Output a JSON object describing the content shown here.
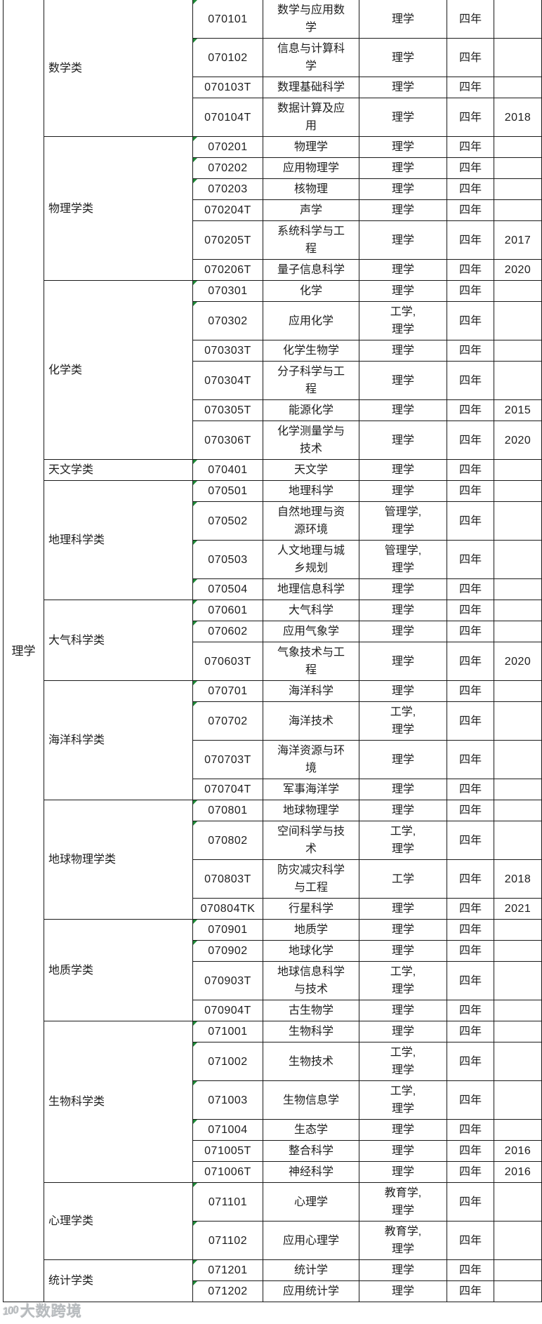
{
  "colors": {
    "border": "#1a1a1a",
    "text": "#1d1d1d",
    "background": "#ffffff",
    "cell_flag_green": "#1f8a38",
    "watermark_gray": "#acb0b4"
  },
  "watermark": {
    "logo": "100",
    "text": "大数跨境"
  },
  "table": {
    "root_category": "理学",
    "groups": [
      {
        "name": "数学类",
        "majors": [
          {
            "code": "070101",
            "name": "数学与应用数学",
            "degree": "理学",
            "duration": "四年",
            "year": ""
          },
          {
            "code": "070102",
            "name": "信息与计算科学",
            "degree": "理学",
            "duration": "四年",
            "year": ""
          },
          {
            "code": "070103T",
            "name": "数理基础科学",
            "degree": "理学",
            "duration": "四年",
            "year": ""
          },
          {
            "code": "070104T",
            "name": "数据计算及应用",
            "degree": "理学",
            "duration": "四年",
            "year": "2018"
          }
        ]
      },
      {
        "name": "物理学类",
        "majors": [
          {
            "code": "070201",
            "name": "物理学",
            "degree": "理学",
            "duration": "四年",
            "year": ""
          },
          {
            "code": "070202",
            "name": "应用物理学",
            "degree": "理学",
            "duration": "四年",
            "year": ""
          },
          {
            "code": "070203",
            "name": "核物理",
            "degree": "理学",
            "duration": "四年",
            "year": ""
          },
          {
            "code": "070204T",
            "name": "声学",
            "degree": "理学",
            "duration": "四年",
            "year": ""
          },
          {
            "code": "070205T",
            "name": "系统科学与工程",
            "degree": "理学",
            "duration": "四年",
            "year": "2017"
          },
          {
            "code": "070206T",
            "name": "量子信息科学",
            "degree": "理学",
            "duration": "四年",
            "year": "2020"
          }
        ]
      },
      {
        "name": "化学类",
        "majors": [
          {
            "code": "070301",
            "name": "化学",
            "degree": "理学",
            "duration": "四年",
            "year": ""
          },
          {
            "code": "070302",
            "name": "应用化学",
            "degree": "工学,\n理学",
            "duration": "四年",
            "year": ""
          },
          {
            "code": "070303T",
            "name": "化学生物学",
            "degree": "理学",
            "duration": "四年",
            "year": ""
          },
          {
            "code": "070304T",
            "name": "分子科学与工程",
            "degree": "理学",
            "duration": "四年",
            "year": ""
          },
          {
            "code": "070305T",
            "name": "能源化学",
            "degree": "理学",
            "duration": "四年",
            "year": "2015"
          },
          {
            "code": "070306T",
            "name": "化学测量学与技术",
            "degree": "理学",
            "duration": "四年",
            "year": "2020"
          }
        ]
      },
      {
        "name": "天文学类",
        "majors": [
          {
            "code": "070401",
            "name": "天文学",
            "degree": "理学",
            "duration": "四年",
            "year": ""
          }
        ]
      },
      {
        "name": "地理科学类",
        "majors": [
          {
            "code": "070501",
            "name": "地理科学",
            "degree": "理学",
            "duration": "四年",
            "year": ""
          },
          {
            "code": "070502",
            "name": "自然地理与资源环境",
            "degree": "管理学,\n理学",
            "duration": "四年",
            "year": ""
          },
          {
            "code": "070503",
            "name": "人文地理与城乡规划",
            "degree": "管理学,\n理学",
            "duration": "四年",
            "year": ""
          },
          {
            "code": "070504",
            "name": "地理信息科学",
            "degree": "理学",
            "duration": "四年",
            "year": ""
          }
        ]
      },
      {
        "name": "大气科学类",
        "majors": [
          {
            "code": "070601",
            "name": "大气科学",
            "degree": "理学",
            "duration": "四年",
            "year": ""
          },
          {
            "code": "070602",
            "name": "应用气象学",
            "degree": "理学",
            "duration": "四年",
            "year": ""
          },
          {
            "code": "070603T",
            "name": "气象技术与工程",
            "degree": "理学",
            "duration": "四年",
            "year": "2020"
          }
        ]
      },
      {
        "name": "海洋科学类",
        "majors": [
          {
            "code": "070701",
            "name": "海洋科学",
            "degree": "理学",
            "duration": "四年",
            "year": ""
          },
          {
            "code": "070702",
            "name": "海洋技术",
            "degree": "工学,\n理学",
            "duration": "四年",
            "year": ""
          },
          {
            "code": "070703T",
            "name": "海洋资源与环境",
            "degree": "理学",
            "duration": "四年",
            "year": ""
          },
          {
            "code": "070704T",
            "name": "军事海洋学",
            "degree": "理学",
            "duration": "四年",
            "year": ""
          }
        ]
      },
      {
        "name": "地球物理学类",
        "majors": [
          {
            "code": "070801",
            "name": "地球物理学",
            "degree": "理学",
            "duration": "四年",
            "year": ""
          },
          {
            "code": "070802",
            "name": "空间科学与技术",
            "degree": "工学,\n理学",
            "duration": "四年",
            "year": ""
          },
          {
            "code": "070803T",
            "name": "防灾减灾科学与工程",
            "degree": "工学",
            "duration": "四年",
            "year": "2018"
          },
          {
            "code": "070804TK",
            "name": "行星科学",
            "degree": "理学",
            "duration": "四年",
            "year": "2021"
          }
        ]
      },
      {
        "name": "地质学类",
        "majors": [
          {
            "code": "070901",
            "name": "地质学",
            "degree": "理学",
            "duration": "四年",
            "year": ""
          },
          {
            "code": "070902",
            "name": "地球化学",
            "degree": "理学",
            "duration": "四年",
            "year": ""
          },
          {
            "code": "070903T",
            "name": "地球信息科学与技术",
            "degree": "工学,\n理学",
            "duration": "四年",
            "year": ""
          },
          {
            "code": "070904T",
            "name": "古生物学",
            "degree": "理学",
            "duration": "四年",
            "year": ""
          }
        ]
      },
      {
        "name": "生物科学类",
        "majors": [
          {
            "code": "071001",
            "name": "生物科学",
            "degree": "理学",
            "duration": "四年",
            "year": ""
          },
          {
            "code": "071002",
            "name": "生物技术",
            "degree": "工学,\n理学",
            "duration": "四年",
            "year": ""
          },
          {
            "code": "071003",
            "name": "生物信息学",
            "degree": "工学,\n理学",
            "duration": "四年",
            "year": ""
          },
          {
            "code": "071004",
            "name": "生态学",
            "degree": "理学",
            "duration": "四年",
            "year": ""
          },
          {
            "code": "071005T",
            "name": "整合科学",
            "degree": "理学",
            "duration": "四年",
            "year": "2016"
          },
          {
            "code": "071006T",
            "name": "神经科学",
            "degree": "理学",
            "duration": "四年",
            "year": "2016"
          }
        ]
      },
      {
        "name": "心理学类",
        "majors": [
          {
            "code": "071101",
            "name": "心理学",
            "degree": "教育学,\n理学",
            "duration": "四年",
            "year": ""
          },
          {
            "code": "071102",
            "name": "应用心理学",
            "degree": "教育学,\n理学",
            "duration": "四年",
            "year": ""
          }
        ]
      },
      {
        "name": "统计学类",
        "majors": [
          {
            "code": "071201",
            "name": "统计学",
            "degree": "理学",
            "duration": "四年",
            "year": ""
          },
          {
            "code": "071202",
            "name": "应用统计学",
            "degree": "理学",
            "duration": "四年",
            "year": ""
          }
        ]
      }
    ]
  }
}
